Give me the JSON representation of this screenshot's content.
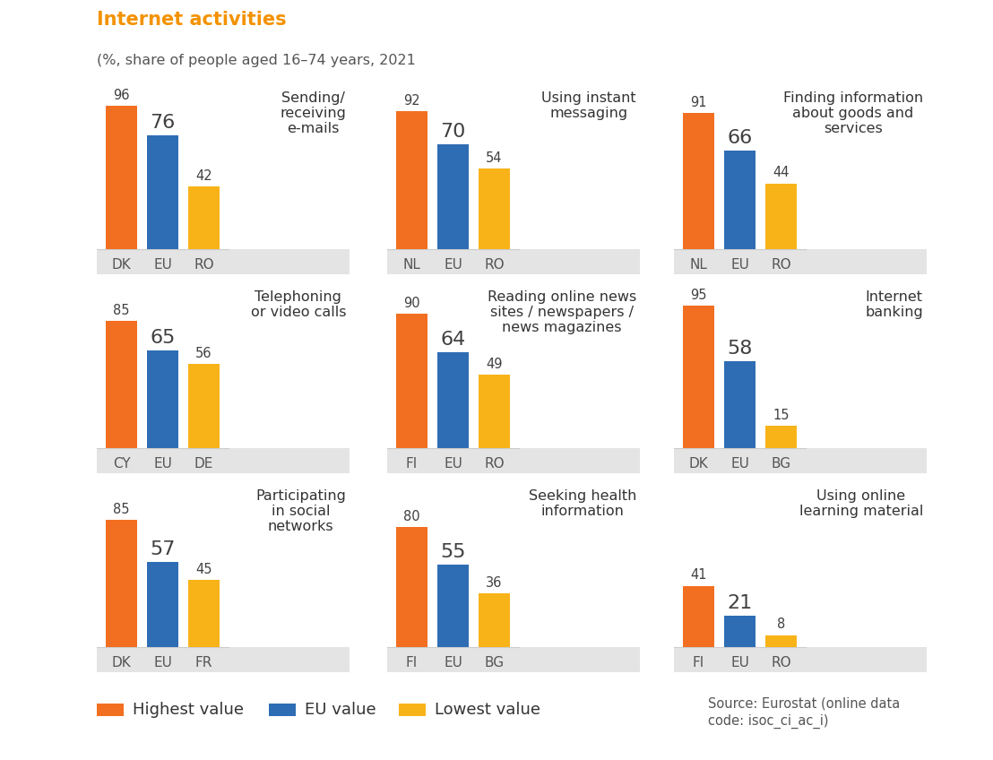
{
  "title": "Internet activities",
  "subtitle": "(%, share of people aged 16–74 years, 2021",
  "source": "Source: Eurostat (online data\ncode: isoc_ci_ac_i)",
  "key": [
    {
      "name": "Highest value",
      "color": "#f26f21"
    },
    {
      "name": "EU value",
      "color": "#2e6db4"
    },
    {
      "name": "Lowest value",
      "color": "#f8b319"
    }
  ],
  "chart_data": [
    {
      "type": "bar",
      "title": "Sending/\nreceiving\ne-mails",
      "categories": [
        "DK",
        "EU",
        "RO"
      ],
      "values": [
        96,
        76,
        42
      ],
      "colors": [
        "#f26f21",
        "#2e6db4",
        "#f8b319"
      ],
      "ylim": [
        0,
        100
      ],
      "data_labels": true,
      "tick_labels": "x"
    },
    {
      "type": "bar",
      "title": "Using instant\nmessaging",
      "categories": [
        "NL",
        "EU",
        "RO"
      ],
      "values": [
        92,
        70,
        54
      ],
      "colors": [
        "#f26f21",
        "#2e6db4",
        "#f8b319"
      ],
      "ylim": [
        0,
        100
      ],
      "data_labels": true,
      "tick_labels": "x"
    },
    {
      "type": "bar",
      "title": "Finding information\nabout goods and\nservices",
      "categories": [
        "NL",
        "EU",
        "RO"
      ],
      "values": [
        91,
        66,
        44
      ],
      "colors": [
        "#f26f21",
        "#2e6db4",
        "#f8b319"
      ],
      "ylim": [
        0,
        100
      ],
      "data_labels": true,
      "tick_labels": "x"
    },
    {
      "type": "bar",
      "title": "Telephoning\nor video calls",
      "categories": [
        "CY",
        "EU",
        "DE"
      ],
      "values": [
        85,
        65,
        56
      ],
      "colors": [
        "#f26f21",
        "#2e6db4",
        "#f8b319"
      ],
      "ylim": [
        0,
        100
      ],
      "data_labels": true,
      "tick_labels": "x"
    },
    {
      "type": "bar",
      "title": "Reading online news\nsites / newspapers /\nnews magazines",
      "categories": [
        "FI",
        "EU",
        "RO"
      ],
      "values": [
        90,
        64,
        49
      ],
      "colors": [
        "#f26f21",
        "#2e6db4",
        "#f8b319"
      ],
      "ylim": [
        0,
        100
      ],
      "data_labels": true,
      "tick_labels": "x"
    },
    {
      "type": "bar",
      "title": "Internet\nbanking",
      "categories": [
        "DK",
        "EU",
        "BG"
      ],
      "values": [
        95,
        58,
        15
      ],
      "colors": [
        "#f26f21",
        "#2e6db4",
        "#f8b319"
      ],
      "ylim": [
        0,
        100
      ],
      "data_labels": true,
      "tick_labels": "x"
    },
    {
      "type": "bar",
      "title": "Participating\nin social\nnetworks",
      "categories": [
        "DK",
        "EU",
        "FR"
      ],
      "values": [
        85,
        57,
        45
      ],
      "colors": [
        "#f26f21",
        "#2e6db4",
        "#f8b319"
      ],
      "ylim": [
        0,
        100
      ],
      "data_labels": true,
      "tick_labels": "x"
    },
    {
      "type": "bar",
      "title": "Seeking health\ninformation",
      "categories": [
        "FI",
        "EU",
        "BG"
      ],
      "values": [
        80,
        55,
        36
      ],
      "colors": [
        "#f26f21",
        "#2e6db4",
        "#f8b319"
      ],
      "ylim": [
        0,
        100
      ],
      "data_labels": true,
      "tick_labels": "x"
    },
    {
      "type": "bar",
      "title": "Using online\nlearning material",
      "categories": [
        "FI",
        "EU",
        "RO"
      ],
      "values": [
        41,
        21,
        8
      ],
      "colors": [
        "#f26f21",
        "#2e6db4",
        "#f8b319"
      ],
      "ylim": [
        0,
        100
      ],
      "data_labels": true,
      "tick_labels": "x"
    }
  ]
}
